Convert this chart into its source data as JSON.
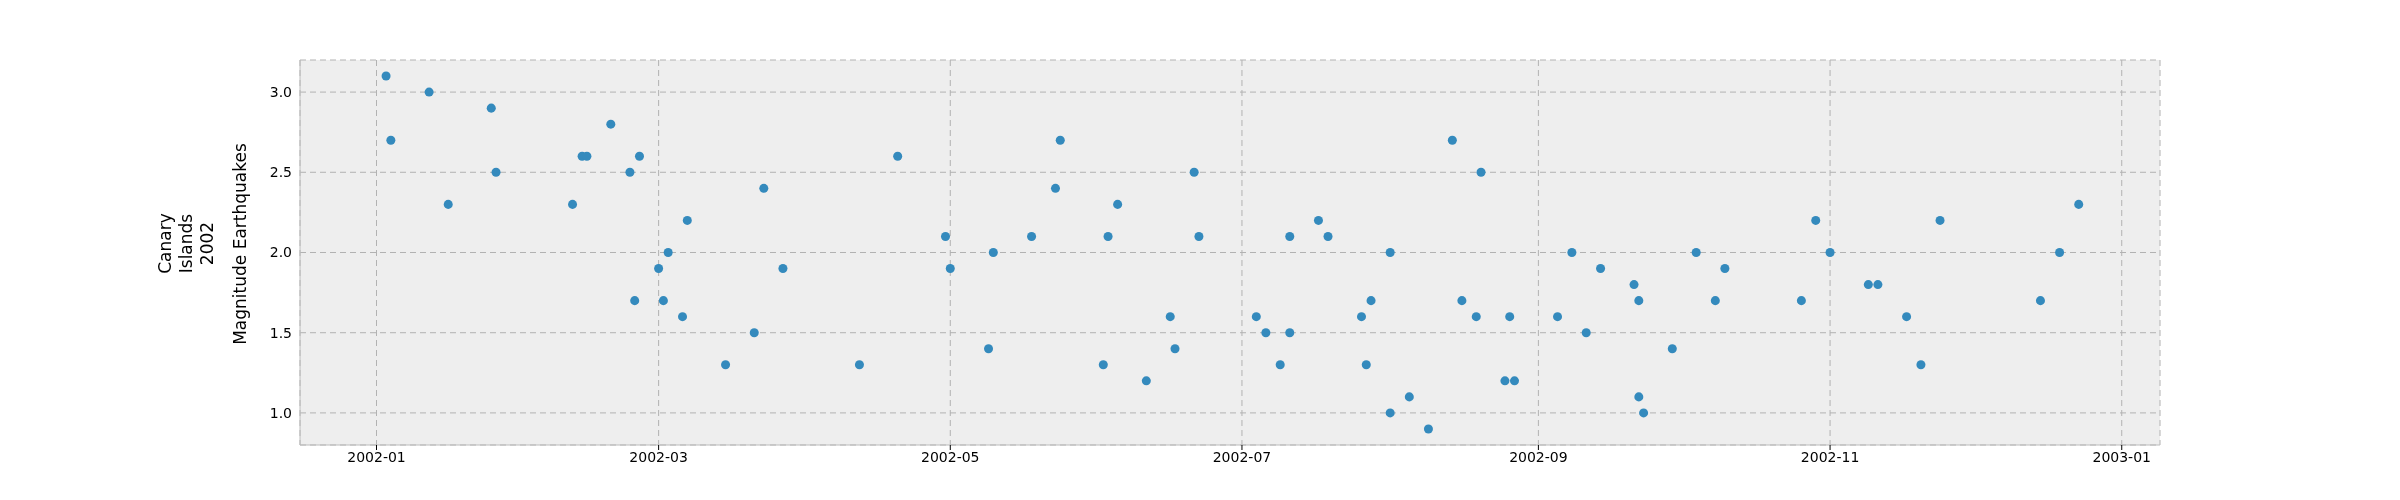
{
  "chart_data": {
    "type": "scatter",
    "ylabel": "Magnitude Earthquakes",
    "annotations": [
      "Canary\nIslands\n2002"
    ],
    "x": [
      "2002-01-03",
      "2002-01-04",
      "2002-01-12",
      "2002-01-16",
      "2002-01-25",
      "2002-01-26",
      "2002-02-11",
      "2002-02-13",
      "2002-02-14",
      "2002-02-19",
      "2002-02-23",
      "2002-02-24",
      "2002-02-25",
      "2002-03-01",
      "2002-03-02",
      "2002-03-03",
      "2002-03-06",
      "2002-03-07",
      "2002-03-15",
      "2002-03-21",
      "2002-03-23",
      "2002-03-27",
      "2002-04-12",
      "2002-04-20",
      "2002-04-30",
      "2002-05-01",
      "2002-05-09",
      "2002-05-10",
      "2002-05-18",
      "2002-05-23",
      "2002-05-24",
      "2002-06-02",
      "2002-06-03",
      "2002-06-05",
      "2002-06-11",
      "2002-06-16",
      "2002-06-17",
      "2002-06-21",
      "2002-06-22",
      "2002-07-04",
      "2002-07-06",
      "2002-07-09",
      "2002-07-11",
      "2002-07-11",
      "2002-07-17",
      "2002-07-19",
      "2002-07-26",
      "2002-07-27",
      "2002-07-28",
      "2002-08-01",
      "2002-08-01",
      "2002-08-05",
      "2002-08-09",
      "2002-08-14",
      "2002-08-16",
      "2002-08-19",
      "2002-08-20",
      "2002-08-25",
      "2002-08-26",
      "2002-08-27",
      "2002-09-05",
      "2002-09-08",
      "2002-09-11",
      "2002-09-14",
      "2002-09-21",
      "2002-09-22",
      "2002-09-22",
      "2002-09-23",
      "2002-09-29",
      "2002-10-04",
      "2002-10-08",
      "2002-10-10",
      "2002-10-26",
      "2002-10-29",
      "2002-11-01",
      "2002-11-09",
      "2002-11-11",
      "2002-11-17",
      "2002-11-20",
      "2002-11-24",
      "2002-12-15",
      "2002-12-19",
      "2002-12-23"
    ],
    "values": [
      3.1,
      2.7,
      3.0,
      2.3,
      2.9,
      2.5,
      2.3,
      2.6,
      2.6,
      2.8,
      2.5,
      1.7,
      2.6,
      1.9,
      1.7,
      2.0,
      1.6,
      2.2,
      1.3,
      1.5,
      2.4,
      1.9,
      1.3,
      2.6,
      2.1,
      1.9,
      1.4,
      2.0,
      2.1,
      2.4,
      2.7,
      1.3,
      2.1,
      2.3,
      1.2,
      1.6,
      1.4,
      2.5,
      2.1,
      1.6,
      1.5,
      1.3,
      2.1,
      1.5,
      2.2,
      2.1,
      1.6,
      1.3,
      1.7,
      1.0,
      2.0,
      1.1,
      0.9,
      2.7,
      1.7,
      1.6,
      2.5,
      1.2,
      1.6,
      1.2,
      1.6,
      2.0,
      1.5,
      1.9,
      1.8,
      1.7,
      1.1,
      1.0,
      1.4,
      2.0,
      1.7,
      1.9,
      1.7,
      2.2,
      2.0,
      1.8,
      1.8,
      1.6,
      1.3,
      2.2,
      1.7,
      2.0,
      2.3
    ],
    "color": "#348abd",
    "marker": "circle",
    "xlim": [
      "2001-12-16",
      "2003-01-09"
    ],
    "xticks": [
      {
        "value": "2002-01",
        "label": "2002-01"
      },
      {
        "value": "2002-03",
        "label": "2002-03"
      },
      {
        "value": "2002-05",
        "label": "2002-05"
      },
      {
        "value": "2002-07",
        "label": "2002-07"
      },
      {
        "value": "2002-09",
        "label": "2002-09"
      },
      {
        "value": "2002-11",
        "label": "2002-11"
      },
      {
        "value": "2003-01",
        "label": "2003-01"
      }
    ],
    "ylim": [
      0.8,
      3.2
    ],
    "yticks": [
      {
        "value": 1.0,
        "label": "1.0"
      },
      {
        "value": 1.5,
        "label": "1.5"
      },
      {
        "value": 2.0,
        "label": "2.0"
      },
      {
        "value": 2.5,
        "label": "2.5"
      },
      {
        "value": 3.0,
        "label": "3.0"
      }
    ],
    "grid": true
  }
}
